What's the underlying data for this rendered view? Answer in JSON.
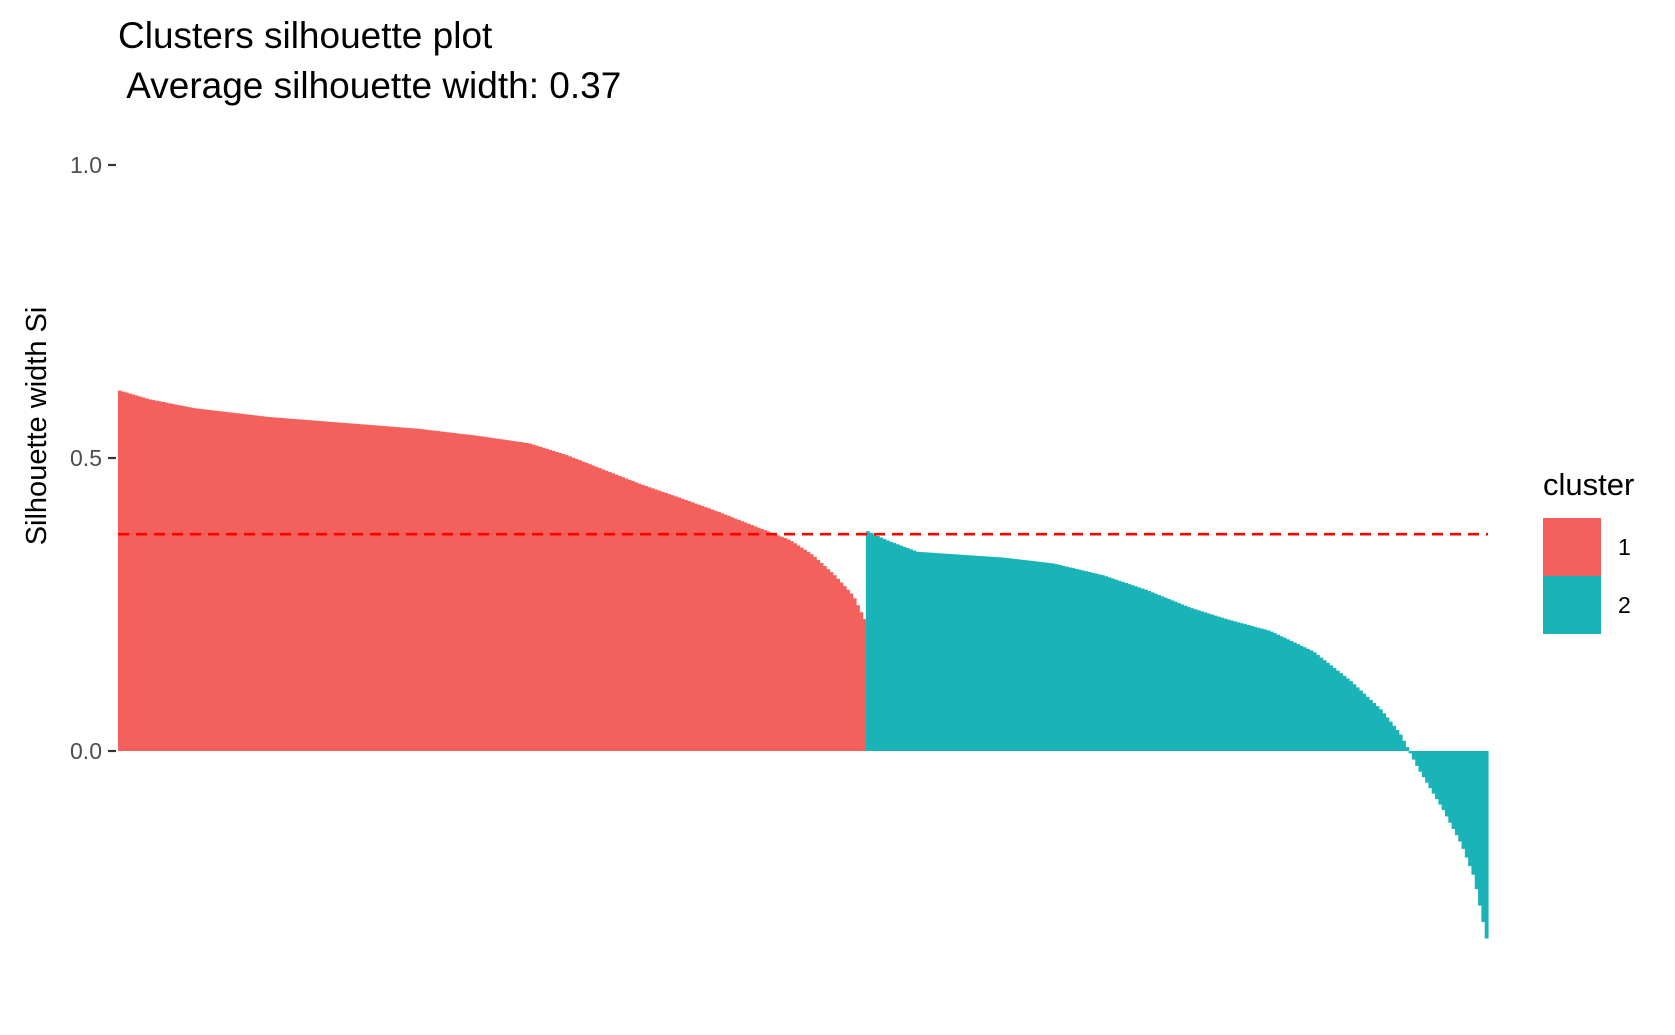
{
  "chart_data": {
    "type": "bar",
    "title": "Clusters silhouette plot",
    "subtitle": " Average silhouette width: 0.37",
    "xlabel": "",
    "ylabel": "Silhouette width Si",
    "ylim": [
      -0.38,
      1.07
    ],
    "yticks": [
      {
        "value": 0.0,
        "label": "0.0"
      },
      {
        "value": 0.5,
        "label": "0.5"
      },
      {
        "value": 1.0,
        "label": "1.0"
      }
    ],
    "grid": false,
    "legend": {
      "title": "cluster",
      "position": "right",
      "entries": [
        {
          "label": "1",
          "color": "#F4615C"
        },
        {
          "label": "2",
          "color": "#1AB4B8"
        }
      ]
    },
    "average_line": {
      "value": 0.37,
      "color": "#FF0000",
      "style": "dashed"
    },
    "series": [
      {
        "cluster": "1",
        "color": "#F4615C",
        "count": 226,
        "profile": [
          [
            0,
            0.615
          ],
          [
            0.04,
            0.6
          ],
          [
            0.1,
            0.585
          ],
          [
            0.2,
            0.57
          ],
          [
            0.3,
            0.56
          ],
          [
            0.4,
            0.55
          ],
          [
            0.48,
            0.538
          ],
          [
            0.55,
            0.525
          ],
          [
            0.6,
            0.505
          ],
          [
            0.65,
            0.48
          ],
          [
            0.7,
            0.455
          ],
          [
            0.75,
            0.433
          ],
          [
            0.8,
            0.41
          ],
          [
            0.85,
            0.385
          ],
          [
            0.9,
            0.36
          ],
          [
            0.93,
            0.335
          ],
          [
            0.96,
            0.3
          ],
          [
            0.985,
            0.265
          ],
          [
            1.0,
            0.225
          ]
        ]
      },
      {
        "cluster": "2",
        "color": "#1AB4B8",
        "count": 188,
        "profile": [
          [
            0,
            0.375
          ],
          [
            0.03,
            0.36
          ],
          [
            0.08,
            0.34
          ],
          [
            0.15,
            0.335
          ],
          [
            0.22,
            0.33
          ],
          [
            0.3,
            0.32
          ],
          [
            0.38,
            0.3
          ],
          [
            0.45,
            0.275
          ],
          [
            0.52,
            0.245
          ],
          [
            0.58,
            0.225
          ],
          [
            0.65,
            0.205
          ],
          [
            0.72,
            0.17
          ],
          [
            0.78,
            0.12
          ],
          [
            0.83,
            0.07
          ],
          [
            0.86,
            0.03
          ],
          [
            0.875,
            0.0
          ],
          [
            0.89,
            -0.03
          ],
          [
            0.93,
            -0.1
          ],
          [
            0.96,
            -0.16
          ],
          [
            0.98,
            -0.215
          ],
          [
            1.0,
            -0.32
          ]
        ]
      }
    ]
  }
}
